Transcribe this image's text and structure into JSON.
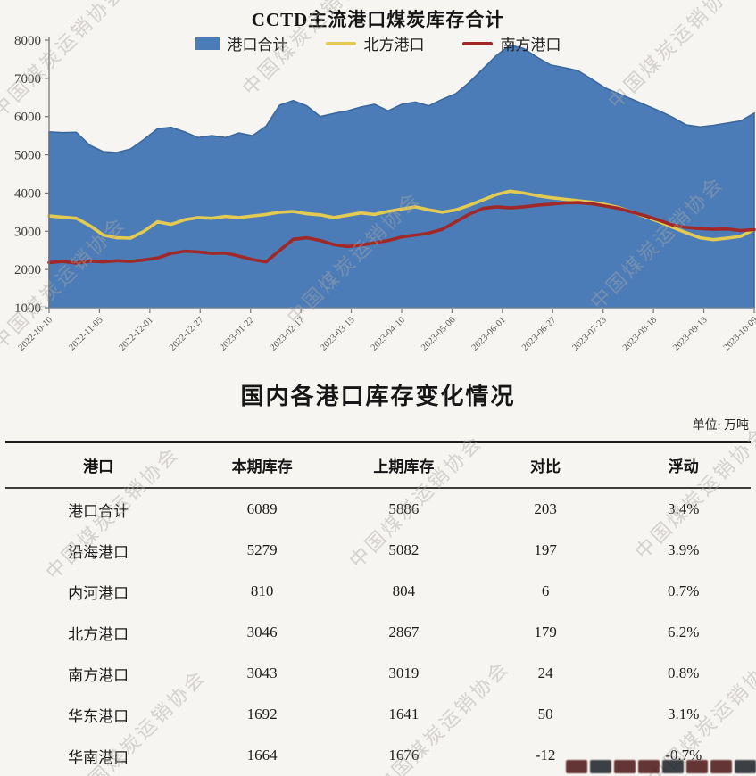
{
  "watermark": {
    "text": "中国煤炭运销协会"
  },
  "chart_data": {
    "type": "area",
    "title": "CCTD主流港口煤炭库存合计",
    "ylim": [
      1000,
      8000
    ],
    "yticks": [
      8000,
      7000,
      6000,
      5000,
      4000,
      3000,
      2000,
      1000
    ],
    "grid": "off",
    "legend_position": "top",
    "x_labels": [
      "2022-10-10",
      "2022-11-05",
      "2022-12-01",
      "2022-12-27",
      "2023-01-22",
      "2023-02-17",
      "2023-03-15",
      "2023-04-10",
      "2023-05-06",
      "2023-06-01",
      "2023-06-27",
      "2023-07-23",
      "2023-08-18",
      "2023-09-13",
      "2023-10-09"
    ],
    "series": [
      {
        "name": "港口合计",
        "type": "area",
        "color": "#4c7cb8",
        "edge_color": "#3a689e",
        "values": [
          5600,
          5580,
          5590,
          5250,
          5080,
          5060,
          5150,
          5400,
          5680,
          5720,
          5600,
          5450,
          5500,
          5450,
          5570,
          5500,
          5750,
          6300,
          6420,
          6280,
          6000,
          6080,
          6150,
          6250,
          6320,
          6150,
          6320,
          6380,
          6280,
          6450,
          6600,
          6900,
          7250,
          7600,
          7870,
          7780,
          7550,
          7350,
          7280,
          7200,
          6980,
          6750,
          6600,
          6450,
          6300,
          6150,
          5980,
          5780,
          5730,
          5770,
          5830,
          5886,
          6089
        ]
      },
      {
        "name": "北方港口",
        "type": "line",
        "color": "#e2cb50",
        "values": [
          3400,
          3370,
          3340,
          3150,
          2900,
          2830,
          2820,
          3000,
          3250,
          3180,
          3300,
          3360,
          3340,
          3390,
          3360,
          3400,
          3440,
          3500,
          3520,
          3460,
          3430,
          3360,
          3420,
          3480,
          3440,
          3520,
          3580,
          3640,
          3560,
          3500,
          3560,
          3680,
          3820,
          3960,
          4050,
          4000,
          3930,
          3880,
          3840,
          3800,
          3760,
          3700,
          3620,
          3500,
          3380,
          3250,
          3100,
          2960,
          2830,
          2780,
          2820,
          2867,
          3046
        ]
      },
      {
        "name": "南方港口",
        "type": "line",
        "color": "#a02828",
        "values": [
          2180,
          2210,
          2170,
          2220,
          2200,
          2230,
          2210,
          2250,
          2300,
          2420,
          2480,
          2460,
          2420,
          2430,
          2350,
          2260,
          2200,
          2500,
          2790,
          2830,
          2760,
          2650,
          2600,
          2640,
          2700,
          2760,
          2850,
          2900,
          2950,
          3050,
          3250,
          3450,
          3600,
          3640,
          3610,
          3640,
          3680,
          3710,
          3740,
          3750,
          3720,
          3660,
          3600,
          3500,
          3400,
          3290,
          3160,
          3100,
          3070,
          3050,
          3060,
          3019,
          3043
        ]
      }
    ]
  },
  "table_section": {
    "title": "国内各港口库存变化情况",
    "unit": "单位: 万吨",
    "columns": [
      "港口",
      "本期库存",
      "上期库存",
      "对比",
      "浮动"
    ],
    "rows": [
      [
        "港口合计",
        "6089",
        "5886",
        "203",
        "3.4%"
      ],
      [
        "沿海港口",
        "5279",
        "5082",
        "197",
        "3.9%"
      ],
      [
        "内河港口",
        "810",
        "804",
        "6",
        "0.7%"
      ],
      [
        "北方港口",
        "3046",
        "2867",
        "179",
        "6.2%"
      ],
      [
        "南方港口",
        "3043",
        "3019",
        "24",
        "0.8%"
      ],
      [
        "华东港口",
        "1692",
        "1641",
        "50",
        "3.1%"
      ],
      [
        "华南港口",
        "1664",
        "1676",
        "-12",
        "-0.7%"
      ]
    ]
  }
}
